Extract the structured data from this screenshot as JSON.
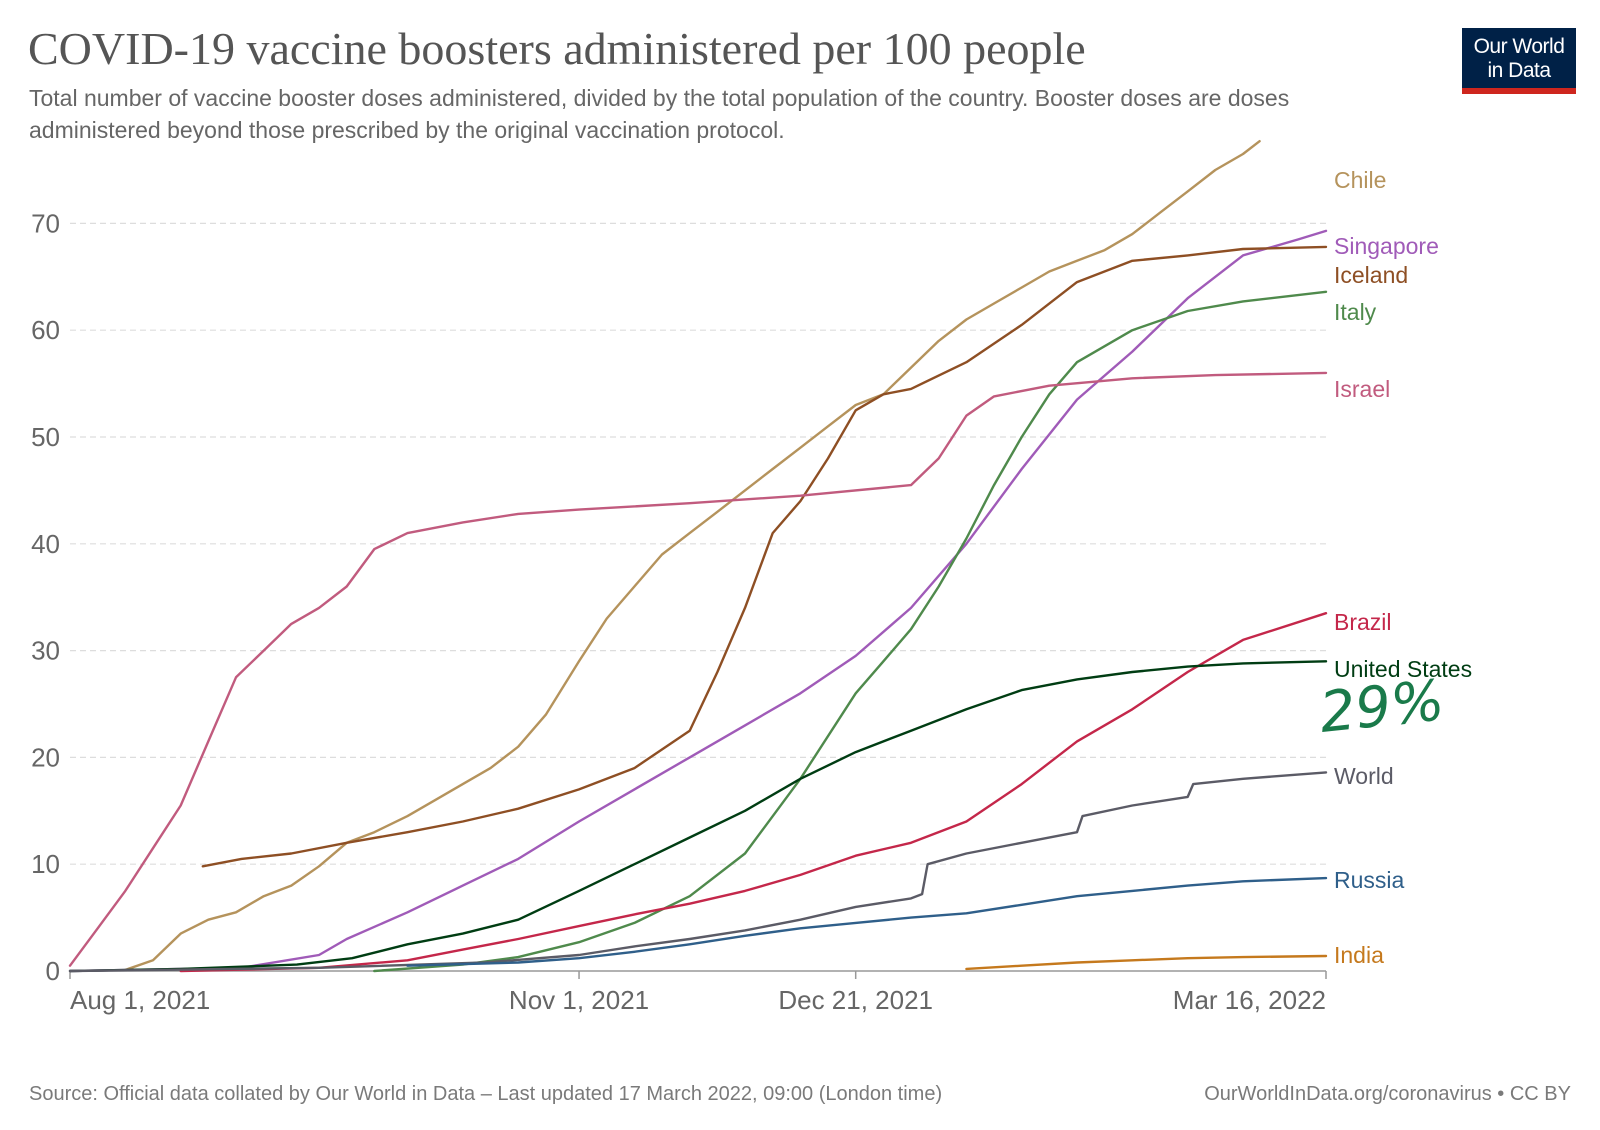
{
  "header": {
    "title": "COVID-19 vaccine boosters administered per 100 people",
    "subtitle": "Total number of vaccine booster doses administered, divided by the total population of the country. Booster doses are doses administered beyond those prescribed by the original vaccination protocol.",
    "logo_line1": "Our World",
    "logo_line2": "in Data"
  },
  "annotation": {
    "text": "29%",
    "color": "#1a7a4a"
  },
  "footer": {
    "source": "Source: Official data collated by Our World in Data – Last updated 17 March 2022, 09:00 (London time)",
    "credit": "OurWorldInData.org/coronavirus • CC BY"
  },
  "chart_data": {
    "type": "line",
    "title": "COVID-19 vaccine boosters administered per 100 people",
    "xlabel": "",
    "ylabel": "",
    "x_ticks": [
      "Aug 1, 2021",
      "Nov 1, 2021",
      "Dec 21, 2021",
      "Mar 16, 2022"
    ],
    "x_range": [
      "2021-08-01",
      "2022-03-16"
    ],
    "yticks": [
      0,
      10,
      20,
      30,
      40,
      50,
      60,
      70
    ],
    "ylim": [
      0,
      75
    ],
    "grid": "horizontal-dashed",
    "legend": "labels-at-line-end-right",
    "series": [
      {
        "name": "Chile",
        "color": "#b5935c",
        "points": [
          [
            "2021-08-11",
            0.1
          ],
          [
            "2021-08-16",
            1.0
          ],
          [
            "2021-08-21",
            3.5
          ],
          [
            "2021-08-26",
            4.8
          ],
          [
            "2021-08-31",
            5.5
          ],
          [
            "2021-09-05",
            7.0
          ],
          [
            "2021-09-10",
            8.0
          ],
          [
            "2021-09-15",
            9.8
          ],
          [
            "2021-09-20",
            12.0
          ],
          [
            "2021-09-25",
            13.0
          ],
          [
            "2021-10-01",
            14.5
          ],
          [
            "2021-10-06",
            16.0
          ],
          [
            "2021-10-11",
            17.5
          ],
          [
            "2021-10-16",
            19.0
          ],
          [
            "2021-10-21",
            21.0
          ],
          [
            "2021-10-26",
            24.0
          ],
          [
            "2021-11-01",
            29.0
          ],
          [
            "2021-11-06",
            33.0
          ],
          [
            "2021-11-11",
            36.0
          ],
          [
            "2021-11-16",
            39.0
          ],
          [
            "2021-11-21",
            41.0
          ],
          [
            "2021-11-26",
            43.0
          ],
          [
            "2021-12-01",
            45.0
          ],
          [
            "2021-12-06",
            47.0
          ],
          [
            "2021-12-11",
            49.0
          ],
          [
            "2021-12-16",
            51.0
          ],
          [
            "2021-12-21",
            53.0
          ],
          [
            "2021-12-26",
            54.0
          ],
          [
            "2021-12-31",
            56.5
          ],
          [
            "2022-01-05",
            59.0
          ],
          [
            "2022-01-10",
            61.0
          ],
          [
            "2022-01-15",
            62.5
          ],
          [
            "2022-01-20",
            64.0
          ],
          [
            "2022-01-25",
            65.5
          ],
          [
            "2022-01-30",
            66.5
          ],
          [
            "2022-02-04",
            67.5
          ],
          [
            "2022-02-09",
            69.0
          ],
          [
            "2022-02-14",
            71.0
          ],
          [
            "2022-02-19",
            73.0
          ],
          [
            "2022-02-24",
            75.0
          ],
          [
            "2022-03-01",
            76.5
          ],
          [
            "2022-03-04",
            77.7
          ]
        ]
      },
      {
        "name": "Singapore",
        "color": "#a05bb8",
        "points": [
          [
            "2021-08-01",
            0.0
          ],
          [
            "2021-09-01",
            0.3
          ],
          [
            "2021-09-15",
            1.5
          ],
          [
            "2021-09-20",
            3.0
          ],
          [
            "2021-10-01",
            5.5
          ],
          [
            "2021-10-11",
            8.0
          ],
          [
            "2021-10-21",
            10.5
          ],
          [
            "2021-11-01",
            14.0
          ],
          [
            "2021-11-11",
            17.0
          ],
          [
            "2021-11-21",
            20.0
          ],
          [
            "2021-12-01",
            23.0
          ],
          [
            "2021-12-11",
            26.0
          ],
          [
            "2021-12-21",
            29.5
          ],
          [
            "2021-12-31",
            34.0
          ],
          [
            "2022-01-10",
            40.0
          ],
          [
            "2022-01-20",
            47.0
          ],
          [
            "2022-01-30",
            53.5
          ],
          [
            "2022-02-09",
            58.0
          ],
          [
            "2022-02-19",
            63.0
          ],
          [
            "2022-03-01",
            67.0
          ],
          [
            "2022-03-11",
            68.5
          ],
          [
            "2022-03-16",
            69.3
          ]
        ]
      },
      {
        "name": "Iceland",
        "color": "#8e4f24",
        "points": [
          [
            "2021-08-25",
            9.8
          ],
          [
            "2021-09-01",
            10.5
          ],
          [
            "2021-09-10",
            11.0
          ],
          [
            "2021-09-20",
            12.0
          ],
          [
            "2021-10-01",
            13.0
          ],
          [
            "2021-10-11",
            14.0
          ],
          [
            "2021-10-21",
            15.2
          ],
          [
            "2021-11-01",
            17.0
          ],
          [
            "2021-11-11",
            19.0
          ],
          [
            "2021-11-21",
            22.5
          ],
          [
            "2021-11-26",
            28.0
          ],
          [
            "2021-12-01",
            34.0
          ],
          [
            "2021-12-06",
            41.0
          ],
          [
            "2021-12-11",
            44.0
          ],
          [
            "2021-12-16",
            48.0
          ],
          [
            "2021-12-21",
            52.5
          ],
          [
            "2021-12-26",
            54.0
          ],
          [
            "2021-12-31",
            54.5
          ],
          [
            "2022-01-10",
            57.0
          ],
          [
            "2022-01-20",
            60.5
          ],
          [
            "2022-01-30",
            64.5
          ],
          [
            "2022-02-09",
            66.5
          ],
          [
            "2022-02-19",
            67.0
          ],
          [
            "2022-03-01",
            67.6
          ],
          [
            "2022-03-16",
            67.8
          ]
        ]
      },
      {
        "name": "Italy",
        "color": "#4f8a4c",
        "points": [
          [
            "2021-09-25",
            0.0
          ],
          [
            "2021-10-11",
            0.6
          ],
          [
            "2021-10-21",
            1.3
          ],
          [
            "2021-11-01",
            2.7
          ],
          [
            "2021-11-11",
            4.5
          ],
          [
            "2021-11-21",
            7.0
          ],
          [
            "2021-12-01",
            11.0
          ],
          [
            "2021-12-11",
            18.0
          ],
          [
            "2021-12-21",
            26.0
          ],
          [
            "2021-12-26",
            29.0
          ],
          [
            "2021-12-31",
            32.0
          ],
          [
            "2022-01-05",
            36.0
          ],
          [
            "2022-01-10",
            40.5
          ],
          [
            "2022-01-15",
            45.5
          ],
          [
            "2022-01-20",
            50.0
          ],
          [
            "2022-01-25",
            54.0
          ],
          [
            "2022-01-30",
            57.0
          ],
          [
            "2022-02-09",
            60.0
          ],
          [
            "2022-02-19",
            61.8
          ],
          [
            "2022-03-01",
            62.7
          ],
          [
            "2022-03-16",
            63.6
          ]
        ]
      },
      {
        "name": "Israel",
        "color": "#c15b7e",
        "points": [
          [
            "2021-08-01",
            0.5
          ],
          [
            "2021-08-06",
            4.0
          ],
          [
            "2021-08-11",
            7.5
          ],
          [
            "2021-08-16",
            11.5
          ],
          [
            "2021-08-21",
            15.5
          ],
          [
            "2021-08-26",
            21.5
          ],
          [
            "2021-08-31",
            27.5
          ],
          [
            "2021-09-05",
            30.0
          ],
          [
            "2021-09-10",
            32.5
          ],
          [
            "2021-09-15",
            34.0
          ],
          [
            "2021-09-20",
            36.0
          ],
          [
            "2021-09-25",
            39.5
          ],
          [
            "2021-10-01",
            41.0
          ],
          [
            "2021-10-11",
            42.0
          ],
          [
            "2021-10-21",
            42.8
          ],
          [
            "2021-11-01",
            43.2
          ],
          [
            "2021-11-21",
            43.8
          ],
          [
            "2021-12-11",
            44.5
          ],
          [
            "2021-12-31",
            45.5
          ],
          [
            "2022-01-05",
            48.0
          ],
          [
            "2022-01-10",
            52.0
          ],
          [
            "2022-01-15",
            53.8
          ],
          [
            "2022-01-25",
            54.8
          ],
          [
            "2022-02-09",
            55.5
          ],
          [
            "2022-02-24",
            55.8
          ],
          [
            "2022-03-16",
            56.0
          ]
        ]
      },
      {
        "name": "Brazil",
        "color": "#c4274a",
        "points": [
          [
            "2021-08-21",
            0.0
          ],
          [
            "2021-09-15",
            0.3
          ],
          [
            "2021-10-01",
            1.0
          ],
          [
            "2021-10-11",
            2.0
          ],
          [
            "2021-10-21",
            3.0
          ],
          [
            "2021-11-01",
            4.2
          ],
          [
            "2021-11-11",
            5.3
          ],
          [
            "2021-11-21",
            6.3
          ],
          [
            "2021-12-01",
            7.5
          ],
          [
            "2021-12-11",
            9.0
          ],
          [
            "2021-12-21",
            10.8
          ],
          [
            "2021-12-31",
            12.0
          ],
          [
            "2022-01-10",
            14.0
          ],
          [
            "2022-01-20",
            17.5
          ],
          [
            "2022-01-30",
            21.5
          ],
          [
            "2022-02-09",
            24.5
          ],
          [
            "2022-02-19",
            28.0
          ],
          [
            "2022-03-01",
            31.0
          ],
          [
            "2022-03-16",
            33.5
          ]
        ]
      },
      {
        "name": "United States",
        "color": "#003d13",
        "points": [
          [
            "2021-08-01",
            0.0
          ],
          [
            "2021-08-21",
            0.2
          ],
          [
            "2021-09-11",
            0.6
          ],
          [
            "2021-09-21",
            1.2
          ],
          [
            "2021-10-01",
            2.5
          ],
          [
            "2021-10-11",
            3.5
          ],
          [
            "2021-10-21",
            4.8
          ],
          [
            "2021-11-01",
            7.5
          ],
          [
            "2021-11-11",
            10.0
          ],
          [
            "2021-11-21",
            12.5
          ],
          [
            "2021-12-01",
            15.0
          ],
          [
            "2021-12-11",
            18.0
          ],
          [
            "2021-12-21",
            20.5
          ],
          [
            "2021-12-31",
            22.5
          ],
          [
            "2022-01-10",
            24.5
          ],
          [
            "2022-01-20",
            26.3
          ],
          [
            "2022-01-30",
            27.3
          ],
          [
            "2022-02-09",
            28.0
          ],
          [
            "2022-02-19",
            28.5
          ],
          [
            "2022-03-01",
            28.8
          ],
          [
            "2022-03-16",
            29.0
          ]
        ]
      },
      {
        "name": "World",
        "color": "#5b5b66",
        "points": [
          [
            "2021-08-01",
            0.0
          ],
          [
            "2021-09-15",
            0.3
          ],
          [
            "2021-10-15",
            0.8
          ],
          [
            "2021-11-01",
            1.5
          ],
          [
            "2021-11-11",
            2.3
          ],
          [
            "2021-11-21",
            3.0
          ],
          [
            "2021-12-01",
            3.8
          ],
          [
            "2021-12-11",
            4.8
          ],
          [
            "2021-12-21",
            6.0
          ],
          [
            "2021-12-31",
            6.8
          ],
          [
            "2022-01-02",
            7.2
          ],
          [
            "2022-01-03",
            10.0
          ],
          [
            "2022-01-10",
            11.0
          ],
          [
            "2022-01-20",
            12.0
          ],
          [
            "2022-01-30",
            13.0
          ],
          [
            "2022-01-31",
            14.5
          ],
          [
            "2022-02-09",
            15.5
          ],
          [
            "2022-02-19",
            16.3
          ],
          [
            "2022-02-20",
            17.5
          ],
          [
            "2022-03-01",
            18.0
          ],
          [
            "2022-03-16",
            18.6
          ]
        ]
      },
      {
        "name": "Russia",
        "color": "#2f5f8a",
        "points": [
          [
            "2021-10-01",
            0.5
          ],
          [
            "2021-10-21",
            0.8
          ],
          [
            "2021-11-01",
            1.2
          ],
          [
            "2021-11-11",
            1.8
          ],
          [
            "2021-11-21",
            2.5
          ],
          [
            "2021-12-01",
            3.3
          ],
          [
            "2021-12-11",
            4.0
          ],
          [
            "2021-12-21",
            4.5
          ],
          [
            "2021-12-31",
            5.0
          ],
          [
            "2022-01-10",
            5.4
          ],
          [
            "2022-01-20",
            6.2
          ],
          [
            "2022-01-30",
            7.0
          ],
          [
            "2022-02-09",
            7.5
          ],
          [
            "2022-02-19",
            8.0
          ],
          [
            "2022-03-01",
            8.4
          ],
          [
            "2022-03-16",
            8.7
          ]
        ]
      },
      {
        "name": "India",
        "color": "#c5791d",
        "points": [
          [
            "2022-01-10",
            0.2
          ],
          [
            "2022-01-20",
            0.5
          ],
          [
            "2022-01-30",
            0.8
          ],
          [
            "2022-02-09",
            1.0
          ],
          [
            "2022-02-19",
            1.2
          ],
          [
            "2022-03-01",
            1.3
          ],
          [
            "2022-03-16",
            1.4
          ]
        ]
      }
    ]
  }
}
